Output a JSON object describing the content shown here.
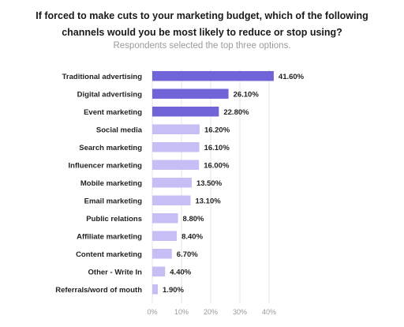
{
  "header": {
    "title_line1": "If forced to make cuts to your marketing budget, which of the following",
    "title_line2": "channels would you be most likely to reduce or stop using?",
    "subtitle": "Respondents selected the top three options."
  },
  "colors": {
    "highlight": "#7163d8",
    "normal": "#c6bef5",
    "grid": "#e4e4e4",
    "tick": "#999999"
  },
  "chart_data": {
    "type": "bar",
    "orientation": "horizontal",
    "title": "If forced to make cuts to your marketing budget, which of the following channels would you be most likely to reduce or stop using?",
    "subtitle": "Respondents selected the top three options.",
    "categories": [
      "Traditional advertising",
      "Digital advertising",
      "Event marketing",
      "Social media",
      "Search marketing",
      "Influencer marketing",
      "Mobile marketing",
      "Email marketing",
      "Public relations",
      "Affiliate marketing",
      "Content marketing",
      "Other - Write In",
      "Referrals/word of mouth"
    ],
    "values": [
      41.6,
      26.1,
      22.8,
      16.2,
      16.1,
      16.0,
      13.5,
      13.1,
      8.8,
      8.4,
      6.7,
      4.4,
      1.9
    ],
    "value_labels": [
      "41.60%",
      "26.10%",
      "22.80%",
      "16.20%",
      "16.10%",
      "16.00%",
      "13.50%",
      "13.10%",
      "8.80%",
      "8.40%",
      "6.70%",
      "4.40%",
      "1.90%"
    ],
    "highlighted_top_n": 3,
    "xlim": [
      0,
      45
    ],
    "xticks": [
      0,
      10,
      20,
      30,
      40
    ],
    "xtick_labels": [
      "0%",
      "10%",
      "20%",
      "30%",
      "40%"
    ],
    "grid": "vertical",
    "xlabel": "",
    "ylabel": ""
  }
}
